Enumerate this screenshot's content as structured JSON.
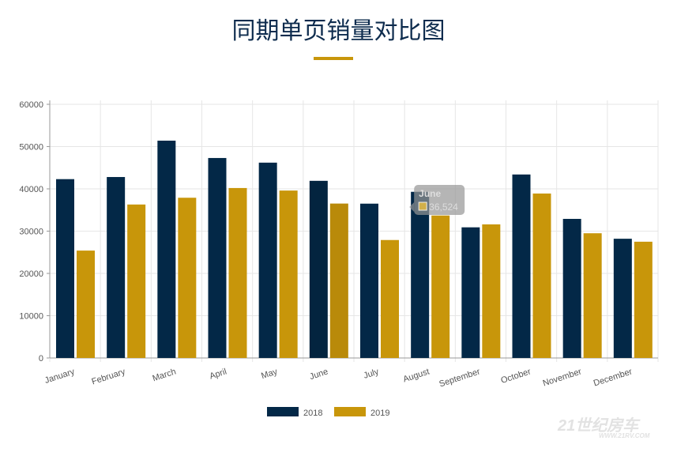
{
  "title": "同期单页销量对比图",
  "chart_data": {
    "type": "bar",
    "title": "同期单页销量对比图",
    "categories": [
      "January",
      "February",
      "March",
      "April",
      "May",
      "June",
      "July",
      "August",
      "September",
      "October",
      "November",
      "December"
    ],
    "series": [
      {
        "name": "2018",
        "color": "#032847",
        "values": [
          42300,
          42800,
          51400,
          47300,
          46200,
          41900,
          36500,
          39300,
          30900,
          43400,
          32900,
          28200
        ]
      },
      {
        "name": "2019",
        "color": "#c8960a",
        "values": [
          25400,
          36300,
          37900,
          40200,
          39600,
          36524,
          27900,
          33700,
          31600,
          38900,
          29500,
          27500
        ]
      }
    ],
    "ylim": [
      0,
      60000
    ],
    "yticks": [
      "0",
      "10000",
      "20000",
      "30000",
      "40000",
      "50000",
      "60000"
    ],
    "grid": true,
    "legend": "bottom",
    "tooltip": {
      "title": "June",
      "value": "36,524",
      "series_index": 1,
      "category_index": 5
    }
  },
  "watermark": {
    "logo": "21世纪房车",
    "url": "WWW.21RV.COM"
  }
}
